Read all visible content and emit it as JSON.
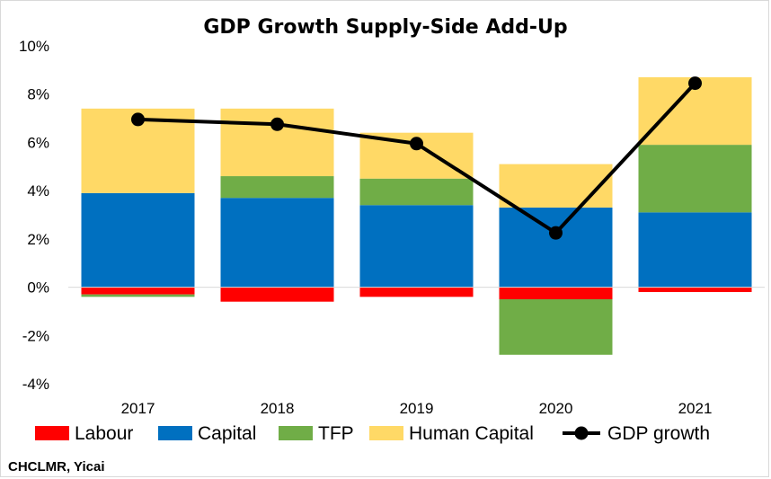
{
  "chart_data": {
    "type": "bar",
    "stacked": true,
    "title": "GDP Growth Supply-Side Add-Up",
    "source": "CHCLMR, Yicai",
    "categories": [
      "2017",
      "2018",
      "2019",
      "2020",
      "2021"
    ],
    "ylim": [
      -4,
      10
    ],
    "yticks": [
      -4,
      -2,
      0,
      2,
      4,
      6,
      8,
      10
    ],
    "ytick_labels": [
      "-4%",
      "-2%",
      "0%",
      "2%",
      "4%",
      "6%",
      "8%",
      "10%"
    ],
    "grid": false,
    "legend_position": "bottom",
    "series": [
      {
        "name": "Labour",
        "color": "#ff0000",
        "values": [
          -0.3,
          -0.6,
          -0.4,
          -0.5,
          -0.2
        ]
      },
      {
        "name": "Capital",
        "color": "#0070c0",
        "values": [
          3.9,
          3.7,
          3.4,
          3.3,
          3.1
        ]
      },
      {
        "name": "TFP",
        "color": "#70ad47",
        "values": [
          -0.1,
          0.9,
          1.1,
          -2.3,
          2.8
        ]
      },
      {
        "name": "Human Capital",
        "color": "#ffd966",
        "values": [
          3.5,
          2.8,
          1.9,
          1.8,
          2.8
        ]
      }
    ],
    "line_series": {
      "name": "GDP growth",
      "color": "#000000",
      "values": [
        6.95,
        6.75,
        5.95,
        2.25,
        8.45
      ]
    }
  }
}
